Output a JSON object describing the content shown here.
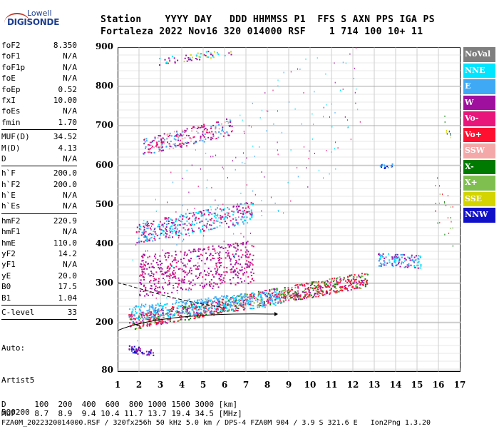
{
  "logo": {
    "top": "Lowell",
    "main": "DIGISONDE"
  },
  "header": {
    "line1": "Station    YYYY DAY   DDD HHMMSS P1  FFS S AXN PPS IGA PS",
    "line2": "Fortaleza 2022 Nov16 320 014000 RSF    1 714 100 10+ 11"
  },
  "params": {
    "group1": [
      {
        "name": "foF2",
        "value": "8.350"
      },
      {
        "name": "foF1",
        "value": "N/A"
      },
      {
        "name": "foF1p",
        "value": "N/A"
      },
      {
        "name": "foE",
        "value": "N/A"
      },
      {
        "name": "foEp",
        "value": "0.52"
      },
      {
        "name": "fxI",
        "value": "10.00"
      },
      {
        "name": "foEs",
        "value": "N/A"
      },
      {
        "name": "fmin",
        "value": "1.70"
      }
    ],
    "group2": [
      {
        "name": "MUF(D)",
        "value": "34.52"
      },
      {
        "name": "M(D)",
        "value": "4.13"
      },
      {
        "name": "D",
        "value": "N/A"
      }
    ],
    "group3": [
      {
        "name": "h`F",
        "value": "200.0"
      },
      {
        "name": "h`F2",
        "value": "200.0"
      },
      {
        "name": "h`E",
        "value": "N/A"
      },
      {
        "name": "h`Es",
        "value": "N/A"
      }
    ],
    "group4": [
      {
        "name": "hmF2",
        "value": "220.9"
      },
      {
        "name": "hmF1",
        "value": "N/A"
      },
      {
        "name": "hmE",
        "value": "110.0"
      },
      {
        "name": "yF2",
        "value": "14.2"
      },
      {
        "name": "yF1",
        "value": "N/A"
      },
      {
        "name": "yE",
        "value": "20.0"
      },
      {
        "name": "B0",
        "value": "17.5"
      },
      {
        "name": "B1",
        "value": "1.04"
      }
    ],
    "group5": [
      {
        "name": "C-level",
        "value": "33"
      }
    ],
    "tail": [
      "Auto:",
      "Artist5",
      "500200"
    ]
  },
  "legend": [
    {
      "label": "NoVal",
      "color": "#7f7f7f"
    },
    {
      "label": "NNE",
      "color": "#00e5ff"
    },
    {
      "label": "E",
      "color": "#3fa9f5"
    },
    {
      "label": "W",
      "color": "#a0109f"
    },
    {
      "label": "Vo-",
      "color": "#e8157a"
    },
    {
      "label": "Vo+",
      "color": "#ff1030"
    },
    {
      "label": "SSW",
      "color": "#f4a8a8"
    },
    {
      "label": "X-",
      "color": "#007a00"
    },
    {
      "label": "X+",
      "color": "#7fbf50"
    },
    {
      "label": "SSE",
      "color": "#d4d400"
    },
    {
      "label": "NNW",
      "color": "#1010c8"
    }
  ],
  "axes": {
    "y_ticks": [
      900,
      800,
      700,
      600,
      500,
      400,
      300,
      200,
      80
    ],
    "x_ticks": [
      1,
      2,
      3,
      4,
      5,
      6,
      7,
      8,
      9,
      10,
      11,
      12,
      13,
      14,
      15,
      16,
      17
    ]
  },
  "footer": {
    "d_row": "D      100  200  400  600  800 1000 1500 3000 [km]",
    "muf_row": "MUF    8.7  8.9  9.4 10.4 11.7 13.7 19.4 34.5 [MHz]",
    "info_row": "FZA0M_2022320014000.RSF / 320fx256h 50 kHz 5.0 km / DPS-4 FZA0M 904 / 3.9 S 321.6 E   Ion2Png 1.3.20"
  }
}
